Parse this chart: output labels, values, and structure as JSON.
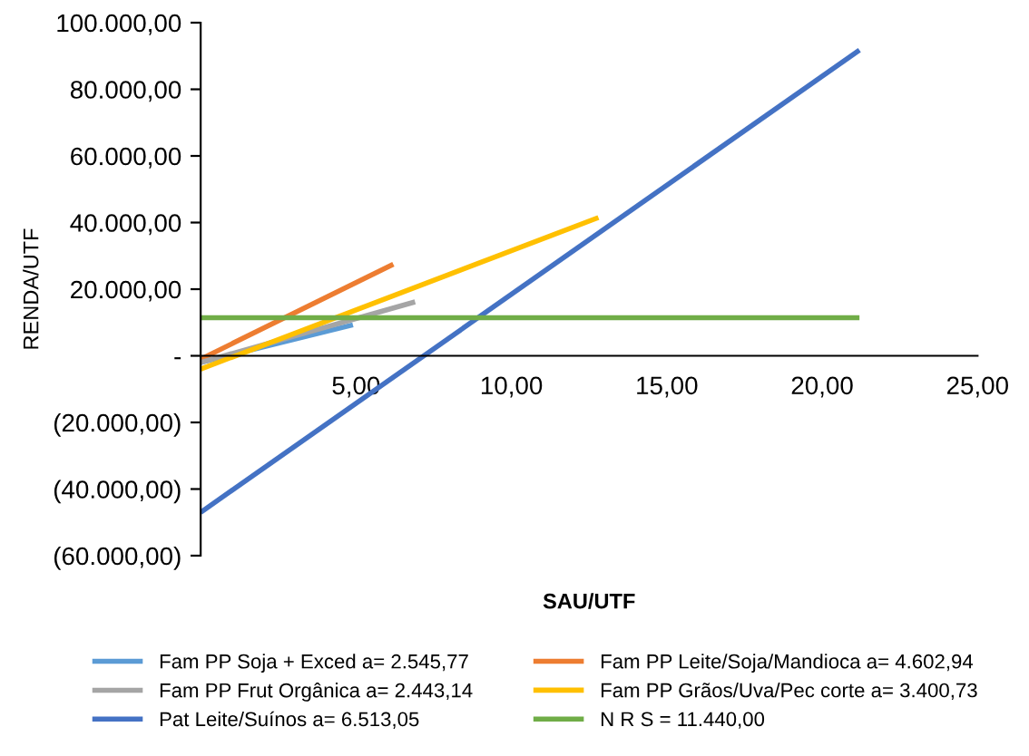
{
  "chart_data": {
    "type": "line",
    "xlabel": "SAU/UTF",
    "ylabel": "RENDA/UTF",
    "xlim": [
      0,
      25
    ],
    "ylim": [
      -60000,
      100000
    ],
    "xticks": [
      {
        "value": 5,
        "label": "5,00"
      },
      {
        "value": 10,
        "label": "10,00"
      },
      {
        "value": 15,
        "label": "15,00"
      },
      {
        "value": 20,
        "label": "20,00"
      },
      {
        "value": 25,
        "label": "25,00"
      }
    ],
    "yticks": [
      {
        "value": -60000,
        "label": "(60.000,00)"
      },
      {
        "value": -40000,
        "label": "(40.000,00)"
      },
      {
        "value": -20000,
        "label": "(20.000,00)"
      },
      {
        "value": 0,
        "label": "-"
      },
      {
        "value": 20000,
        "label": "20.000,00"
      },
      {
        "value": 40000,
        "label": "40.000,00"
      },
      {
        "value": 60000,
        "label": "60.000,00"
      },
      {
        "value": 80000,
        "label": "80.000,00"
      },
      {
        "value": 100000,
        "label": "100.000,00"
      }
    ],
    "grid": false,
    "legend": "bottom",
    "marker": "none",
    "line_style": "solid",
    "series": [
      {
        "name": "Fam PP Soja + Exced a= 2.545,77",
        "color": "#5b9bd5",
        "x": [
          0,
          4.9
        ],
        "values": [
          -2000,
          9300
        ]
      },
      {
        "name": "Fam PP Leite/Soja/Mandioca a= 4.602,94",
        "color": "#ed7d31",
        "x": [
          0,
          6.2
        ],
        "values": [
          -1000,
          27500
        ]
      },
      {
        "name": "Fam PP Frut Orgânica a= 2.443,14",
        "color": "#a5a5a5",
        "x": [
          0,
          6.9
        ],
        "values": [
          -2000,
          16200
        ]
      },
      {
        "name": "Fam PP Grãos/Uva/Pec corte a= 3.400,73",
        "color": "#ffc000",
        "x": [
          0,
          12.8
        ],
        "values": [
          -4000,
          41500
        ]
      },
      {
        "name": "Pat Leite/Suínos a= 6.513,05",
        "color": "#4472c4",
        "x": [
          0,
          21.2
        ],
        "values": [
          -47000,
          91800
        ]
      },
      {
        "name": "N R S = 11.440,00",
        "color": "#70ad47",
        "x": [
          0,
          21.2
        ],
        "values": [
          11440,
          11440
        ]
      }
    ]
  }
}
